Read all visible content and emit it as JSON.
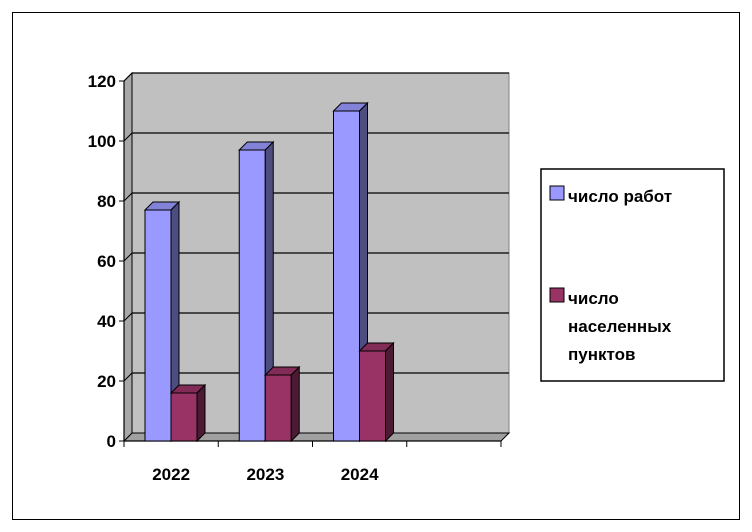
{
  "chart_data": {
    "type": "bar",
    "title": "",
    "xlabel": "",
    "ylabel": "",
    "categories": [
      "2022",
      "2023",
      "2024"
    ],
    "series": [
      {
        "name": "число работ",
        "values": [
          77,
          97,
          110
        ],
        "color": "#9999FF"
      },
      {
        "name": "число населенных пунктов",
        "values": [
          16,
          22,
          30
        ],
        "color": "#993366"
      }
    ],
    "ylim": [
      0,
      120
    ],
    "yticks": [
      "0",
      "20",
      "40",
      "60",
      "80",
      "100",
      "120"
    ],
    "grid": true,
    "legend_position": "right",
    "legend_lines": [
      [
        "число работ"
      ],
      [
        "число",
        "населенных",
        "пунктов"
      ]
    ],
    "plot_background": "#C0C0C0"
  }
}
